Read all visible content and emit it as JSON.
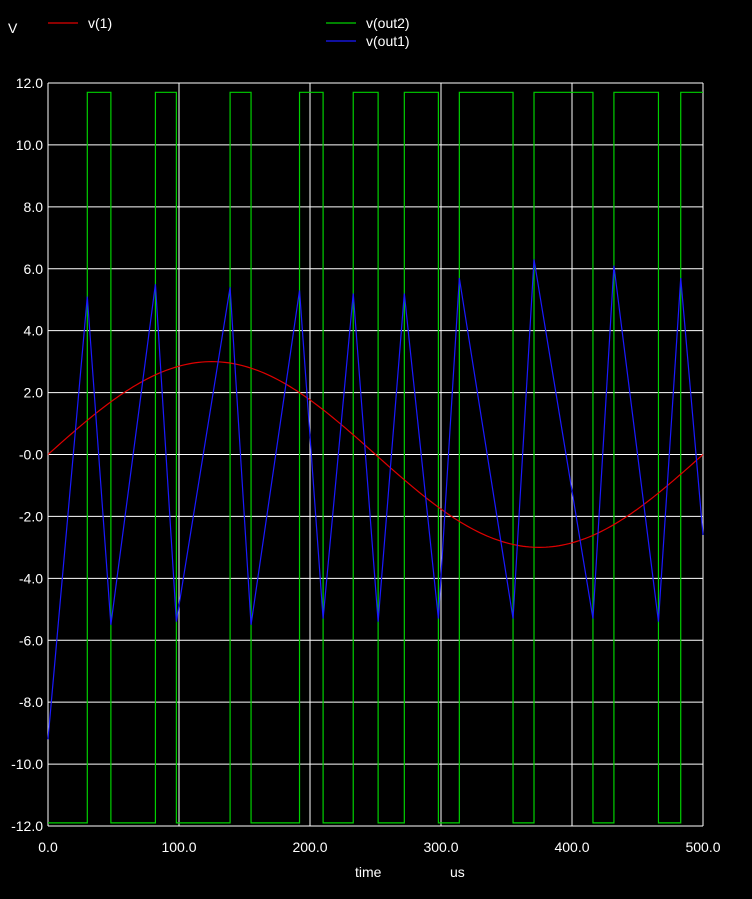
{
  "chart_data": {
    "type": "line",
    "ylabel": "V",
    "xlabel": "time",
    "xunit": "us",
    "xlim": [
      0,
      500
    ],
    "ylim": [
      -12,
      12
    ],
    "grid": true,
    "legend": [
      {
        "name": "v(1)",
        "color": "#e00000"
      },
      {
        "name": "v(out2)",
        "color": "#00d000"
      },
      {
        "name": "v(out1)",
        "color": "#1a1aff"
      }
    ],
    "x_ticks": [
      "0.0",
      "100.0",
      "200.0",
      "300.0",
      "400.0",
      "500.0"
    ],
    "y_ticks": [
      "12.0",
      "10.0",
      "8.0",
      "6.0",
      "4.0",
      "2.0",
      "-0.0",
      "-2.0",
      "-4.0",
      "-6.0",
      "-8.0",
      "-10.0",
      "-12.0"
    ],
    "series": [
      {
        "name": "v(1)",
        "color": "#e00000",
        "description": "3 V amplitude sine, period 500 us",
        "amplitude": 3.0,
        "period": 500,
        "x": [
          0,
          25,
          50,
          75,
          100,
          125,
          150,
          175,
          200,
          225,
          250,
          275,
          300,
          325,
          350,
          375,
          400,
          425,
          450,
          475,
          500
        ],
        "values": [
          0,
          0.93,
          1.76,
          2.43,
          2.85,
          3.0,
          2.85,
          2.43,
          1.76,
          0.93,
          0,
          -0.93,
          -1.76,
          -2.43,
          -2.85,
          -3.0,
          -2.85,
          -2.43,
          -1.76,
          -0.93,
          0
        ]
      },
      {
        "name": "v(out1)",
        "color": "#1a1aff",
        "x": [
          0,
          30,
          48,
          82,
          98,
          139,
          155,
          192,
          210,
          233,
          252,
          272,
          298,
          314,
          355,
          371,
          416,
          432,
          466,
          483,
          500
        ],
        "values": [
          -9.2,
          5.1,
          -5.5,
          5.5,
          -5.4,
          5.4,
          -5.5,
          5.3,
          -5.3,
          5.2,
          -5.4,
          5.2,
          -5.3,
          5.7,
          -5.3,
          6.3,
          -5.3,
          6.1,
          -5.4,
          5.7,
          -2.6
        ]
      },
      {
        "name": "v(out2)",
        "color": "#00d000",
        "type": "step",
        "x": [
          0,
          30,
          48,
          82,
          98,
          139,
          155,
          192,
          210,
          233,
          252,
          272,
          298,
          314,
          355,
          371,
          416,
          432,
          466,
          483,
          500
        ],
        "values": [
          -11.9,
          11.7,
          -11.9,
          11.7,
          -11.9,
          11.7,
          -11.9,
          11.7,
          -11.9,
          11.7,
          -11.9,
          11.7,
          -11.9,
          11.7,
          -11.9,
          11.7,
          -11.9,
          11.7,
          -11.9,
          11.7,
          11.7
        ]
      }
    ]
  }
}
